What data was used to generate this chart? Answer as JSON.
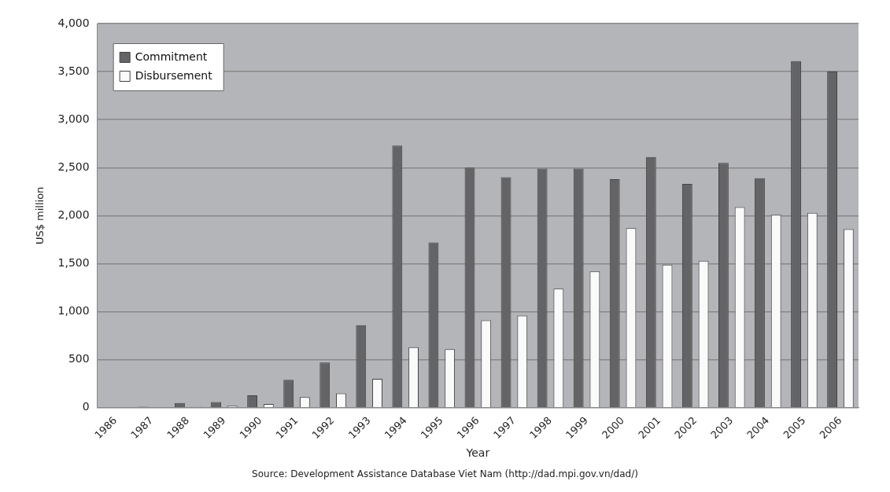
{
  "chart_data": {
    "type": "bar",
    "xlabel": "Year",
    "ylabel": "US$ million",
    "categories": [
      "1986",
      "1987",
      "1988",
      "1989",
      "1990",
      "1991",
      "1992",
      "1993",
      "1994",
      "1995",
      "1996",
      "1997",
      "1998",
      "1999",
      "2000",
      "2001",
      "2002",
      "2003",
      "2004",
      "2005",
      "2006"
    ],
    "series": [
      {
        "name": "Commitment",
        "color": "#646466",
        "values": [
          0,
          10,
          50,
          60,
          130,
          290,
          470,
          860,
          2730,
          1720,
          2500,
          2400,
          2490,
          2490,
          2380,
          2610,
          2330,
          2550,
          2390,
          3610,
          3500
        ]
      },
      {
        "name": "Disbursement",
        "color": "#fafafa",
        "values": [
          0,
          0,
          10,
          20,
          40,
          110,
          150,
          300,
          630,
          610,
          910,
          960,
          1240,
          1420,
          1870,
          1490,
          1530,
          2090,
          2010,
          2030,
          1860
        ]
      }
    ],
    "ylim": [
      0,
      4000
    ],
    "yticks": [
      {
        "value": 0,
        "label": "0"
      },
      {
        "value": 500,
        "label": "500"
      },
      {
        "value": 1000,
        "label": "1,000"
      },
      {
        "value": 1500,
        "label": "1,500"
      },
      {
        "value": 2000,
        "label": "2,000"
      },
      {
        "value": 2500,
        "label": "2,500"
      },
      {
        "value": 3000,
        "label": "3,000"
      },
      {
        "value": 3500,
        "label": "3,500"
      },
      {
        "value": 4000,
        "label": "4,000"
      }
    ],
    "grid": "y",
    "legend": "top left",
    "annotations": [
      "Source: Development Assistance Database Viet Nam (http://dad.mpi.gov.vn/dad/)"
    ]
  }
}
